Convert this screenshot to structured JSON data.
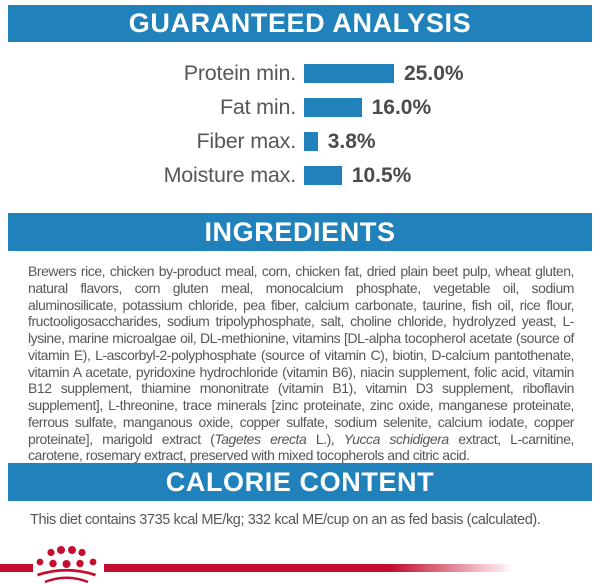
{
  "colors": {
    "header_blue": "#2182bb",
    "bar_blue": "#2182bb",
    "body_text": "#57575a",
    "logo_red": "#c30e2f"
  },
  "sections": {
    "guaranteed_analysis": {
      "title": "GUARANTEED ANALYSIS"
    },
    "ingredients": {
      "title": "INGREDIENTS",
      "text_part_a": "Brewers rice, chicken by-product meal, corn, chicken fat, dried plain beet pulp, wheat gluten, natural flavors, corn gluten meal, monocalcium phosphate, vegetable oil, sodium aluminosilicate, potassium chloride, pea fiber, calcium carbonate, taurine, fish oil, rice flour, fructooligosaccharides, sodium tripolyphosphate, salt, choline chloride, hydrolyzed yeast, L-lysine, marine microalgae oil, DL-methionine, vitamins [DL-alpha tocopherol acetate (source of vitamin E), L-ascorbyl-2-polyphosphate (source of vitamin C), biotin, D-calcium pantothenate, vitamin A acetate, pyridoxine hydrochloride (vitamin B6), niacin supplement, folic acid, vitamin B12 supplement, thiamine mononitrate (vitamin B1), vitamin D3 supplement, riboflavin supplement], L-threonine, trace minerals [zinc proteinate, zinc oxide, manganese proteinate, ferrous sulfate, manganous oxide, copper sulfate, sodium selenite, calcium iodate, copper proteinate], marigold extract (",
      "italic_1": "Tagetes erecta",
      "text_part_b": " L.), ",
      "italic_2": "Yucca schidigera",
      "text_part_c": " extract, L-carnitine, carotene, rosemary extract, preserved with mixed tocopherols and citric acid."
    },
    "calorie_content": {
      "title": "CALORIE CONTENT",
      "text": "This diet contains 3735 kcal ME/kg; 332 kcal ME/cup on an as fed basis (calculated)."
    }
  },
  "chart_data": {
    "type": "bar",
    "orientation": "horizontal",
    "title": "GUARANTEED ANALYSIS",
    "categories": [
      "Protein min.",
      "Fat min.",
      "Fiber max.",
      "Moisture max."
    ],
    "values": [
      25.0,
      16.0,
      3.8,
      10.5
    ],
    "value_labels": [
      "25.0%",
      "16.0%",
      "3.8%",
      "10.5%"
    ],
    "unit": "%",
    "xlim": [
      0,
      28
    ],
    "grid": false,
    "legend": false,
    "bar_color": "#2182bb"
  },
  "footer": {
    "logo_icon": "royal-canin-crown-logo"
  }
}
